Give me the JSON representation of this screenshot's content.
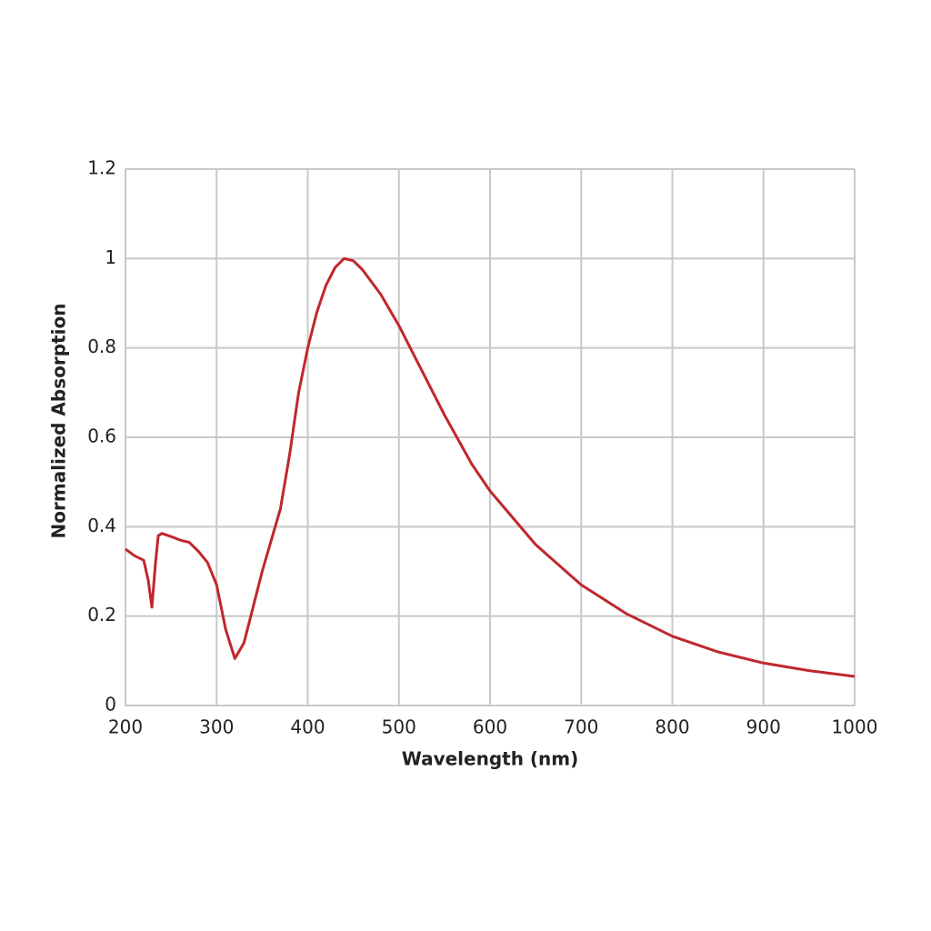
{
  "chart_data": {
    "type": "line",
    "x_label": "Wavelength (nm)",
    "y_label": "Normalized Absorption",
    "x": [
      200,
      210,
      220,
      225,
      229,
      233,
      236,
      240,
      250,
      260,
      270,
      280,
      290,
      300,
      310,
      320,
      330,
      340,
      350,
      360,
      370,
      380,
      390,
      400,
      410,
      420,
      430,
      440,
      450,
      460,
      480,
      500,
      520,
      550,
      580,
      600,
      650,
      700,
      750,
      800,
      850,
      900,
      950,
      1000
    ],
    "series": [
      {
        "color": "#c0272d",
        "values": [
          0.35,
          0.335,
          0.325,
          0.28,
          0.22,
          0.32,
          0.38,
          0.385,
          0.378,
          0.37,
          0.365,
          0.345,
          0.32,
          0.27,
          0.17,
          0.105,
          0.14,
          0.22,
          0.3,
          0.37,
          0.44,
          0.56,
          0.7,
          0.8,
          0.88,
          0.94,
          0.98,
          1.0,
          0.995,
          0.975,
          0.92,
          0.85,
          0.77,
          0.65,
          0.54,
          0.48,
          0.36,
          0.27,
          0.205,
          0.155,
          0.12,
          0.095,
          0.078,
          0.065
        ]
      }
    ],
    "xlim": [
      200,
      1000
    ],
    "xticks": [
      200,
      300,
      400,
      500,
      600,
      700,
      800,
      900,
      1000
    ],
    "ylim": [
      0,
      1.2
    ],
    "yticks": [
      0,
      0.2,
      0.4,
      0.6,
      0.8,
      1,
      1.2
    ],
    "grid": true
  }
}
